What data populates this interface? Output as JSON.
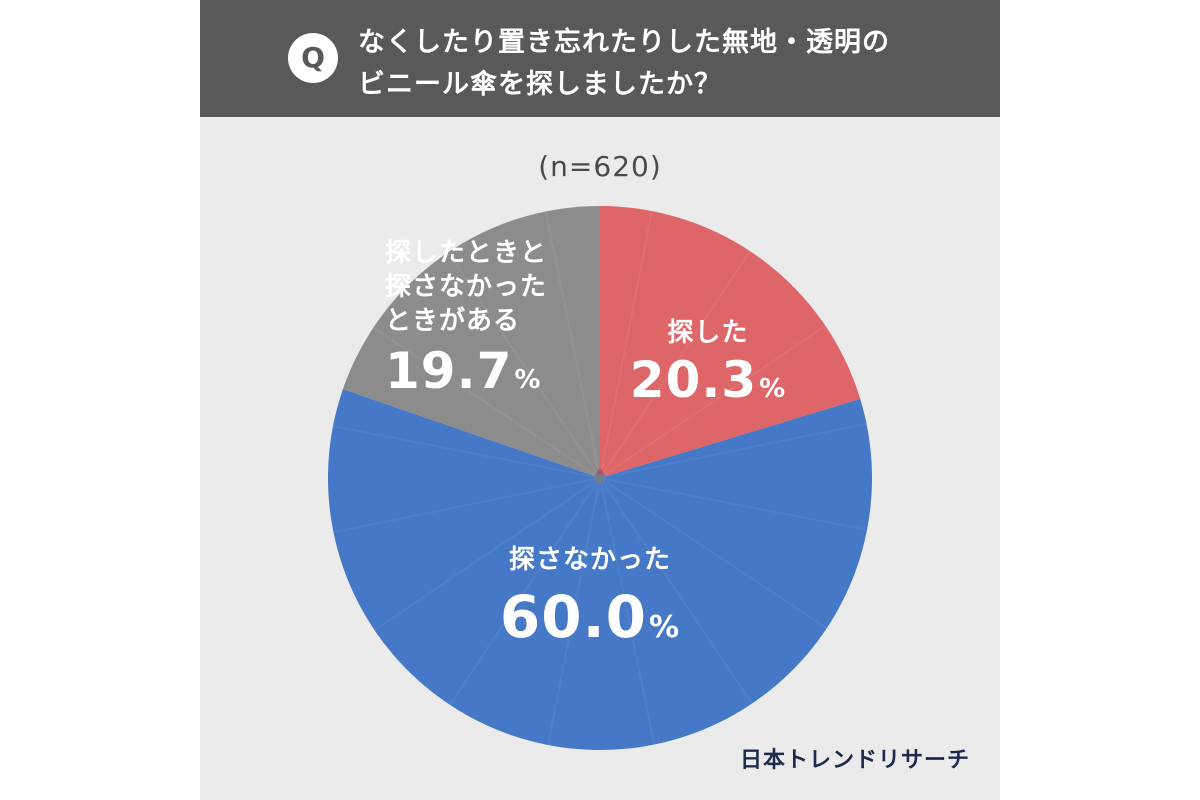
{
  "header": {
    "q_icon": "Q",
    "question_line_1": "なくしたり置き忘れたりした無地・透明の",
    "question_line_2": "ビニール傘を探しましたか？"
  },
  "sample_size": "(n=620)",
  "chart_data": {
    "type": "pie",
    "total_n": 620,
    "slices": [
      {
        "label": "探した",
        "value": 20.3,
        "value_text": "20.3",
        "color": "#de6668"
      },
      {
        "label": "探さなかった",
        "value": 60.0,
        "value_text": "60.0",
        "color": "#4578c7"
      },
      {
        "label_lines": [
          "探したときと",
          "探さなかった",
          "ときがある"
        ],
        "label": "探したときと探さなかったときがある",
        "value": 19.7,
        "value_text": "19.7",
        "color": "#8c8c8c"
      }
    ],
    "percent_sign": "%",
    "legend": "none"
  },
  "footer": {
    "brand": "日本トレンドリサーチ"
  },
  "colors": {
    "header_bg": "#595959",
    "panel_bg": "#ebebeb",
    "brand": "#1c2a4d"
  }
}
